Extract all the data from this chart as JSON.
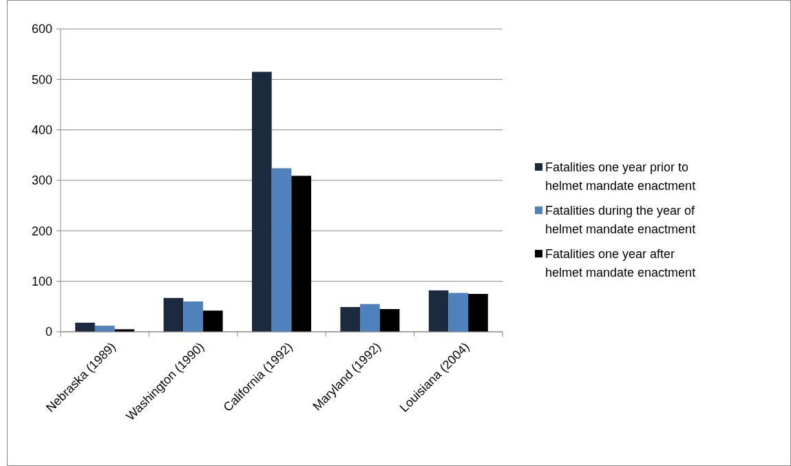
{
  "chart_data": {
    "type": "bar",
    "categories": [
      "Nebraska (1989)",
      "Washington (1990)",
      "California (1992)",
      "Maryland (1992)",
      "Louisiana (2004)"
    ],
    "series": [
      {
        "name": "Fatalities one year prior to helmet mandate enactment",
        "color": "#1c2a3f",
        "values": [
          18,
          67,
          515,
          49,
          82
        ]
      },
      {
        "name": "Fatalities during the year of helmet mandate enactment",
        "color": "#4f81bd",
        "values": [
          12,
          60,
          324,
          55,
          77
        ]
      },
      {
        "name": "Fatalities one year after helmet mandate enactment",
        "color": "#000000",
        "values": [
          5,
          42,
          309,
          45,
          75
        ]
      }
    ],
    "ylim": [
      0,
      600
    ],
    "yticks": [
      0,
      100,
      200,
      300,
      400,
      500,
      600
    ],
    "grid": "y",
    "legend": "right"
  }
}
